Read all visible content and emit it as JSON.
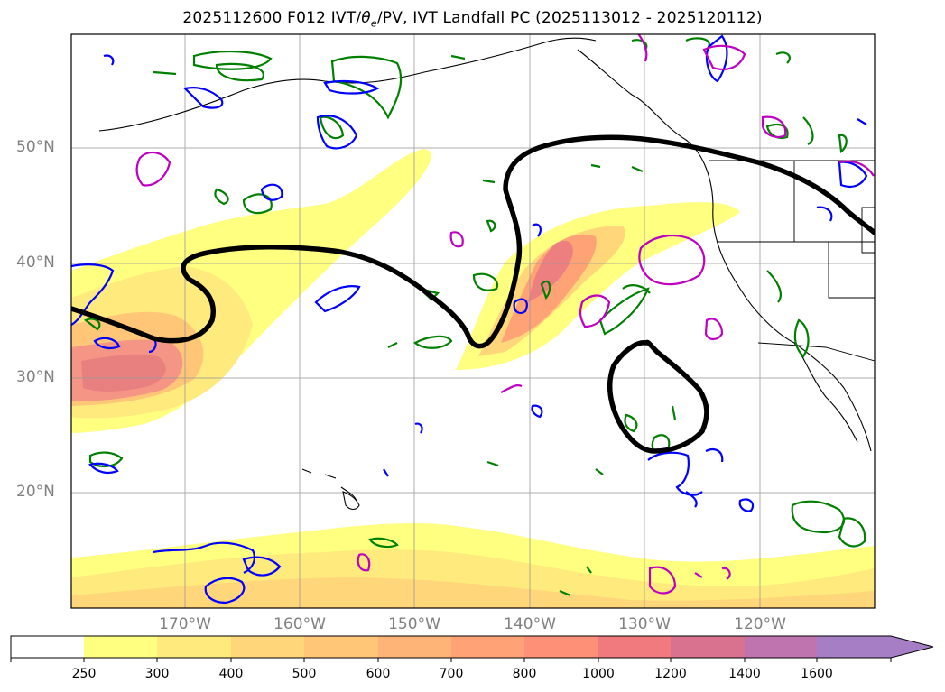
{
  "title": "2025112600 F012 IVT/θe/PV, IVT Landfall PC (2025113012 - 2025120112)",
  "title_parts": {
    "prefix": "2025112600 F012 IVT/",
    "theta": "θ",
    "sub": "e",
    "suffix": "/PV, IVT Landfall PC (2025113012 - 2025120112)"
  },
  "lat_labels": [
    "50°N",
    "40°N",
    "30°N",
    "20°N"
  ],
  "lon_labels": [
    "170°W",
    "160°W",
    "150°W",
    "140°W",
    "130°W",
    "120°W"
  ],
  "colorbar": {
    "ticks": [
      "250",
      "300",
      "400",
      "500",
      "600",
      "700",
      "800",
      "1000",
      "1200",
      "1400",
      "1600"
    ],
    "colors": [
      "#ffffff",
      "#ffff80",
      "#ffea7d",
      "#ffd67a",
      "#ffc678",
      "#ffb477",
      "#ffa376",
      "#ff9078",
      "#f07a7d",
      "#d8728f",
      "#bf74b0",
      "#a67ec6"
    ],
    "extend": "max"
  },
  "map": {
    "lat_range": [
      10,
      60
    ],
    "lon_range": [
      -180,
      -110
    ],
    "grid": true,
    "layers": [
      "IVT shading",
      "theta-e contours (green)",
      "PV contours (blue)",
      "PV contours (magenta)",
      "IVT landfall PC contour (black)"
    ]
  }
}
